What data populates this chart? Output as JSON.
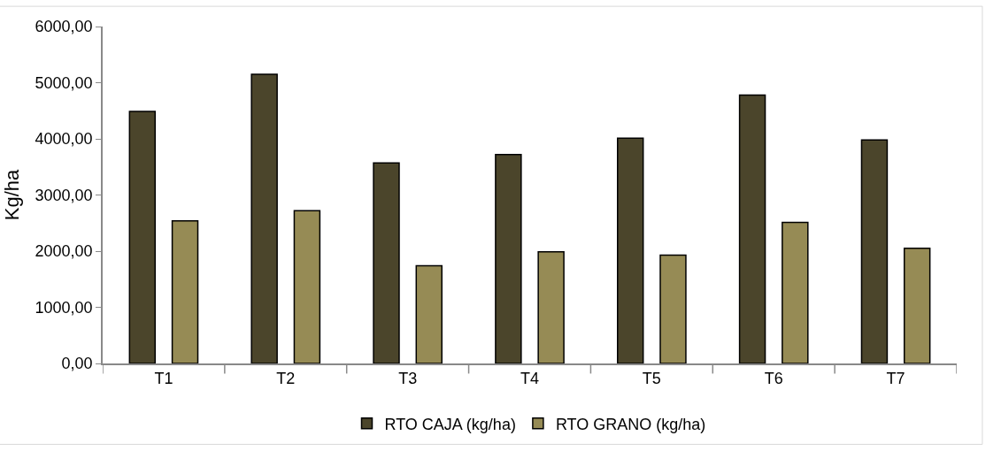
{
  "chart_data": {
    "type": "bar",
    "ylabel": "Kg/ha",
    "categories": [
      "T1",
      "T2",
      "T3",
      "T4",
      "T5",
      "T6",
      "T7"
    ],
    "series": [
      {
        "name": "RTO CAJA (kg/ha)",
        "color": "#4b452b",
        "values": [
          4490,
          5150,
          3570,
          3720,
          4010,
          4780,
          3980
        ]
      },
      {
        "name": "RTO GRANO (kg/ha)",
        "color": "#968b55",
        "values": [
          2540,
          2720,
          1740,
          1990,
          1930,
          2510,
          2050
        ]
      }
    ],
    "ylim": [
      0,
      6000
    ],
    "yticks": [
      {
        "value": 0,
        "label": "0,00"
      },
      {
        "value": 1000,
        "label": "1000,00"
      },
      {
        "value": 2000,
        "label": "2000,00"
      },
      {
        "value": 3000,
        "label": "3000,00"
      },
      {
        "value": 4000,
        "label": "4000,00"
      },
      {
        "value": 5000,
        "label": "5000,00"
      },
      {
        "value": 6000,
        "label": "6000,00"
      }
    ],
    "legend": "bottom"
  }
}
